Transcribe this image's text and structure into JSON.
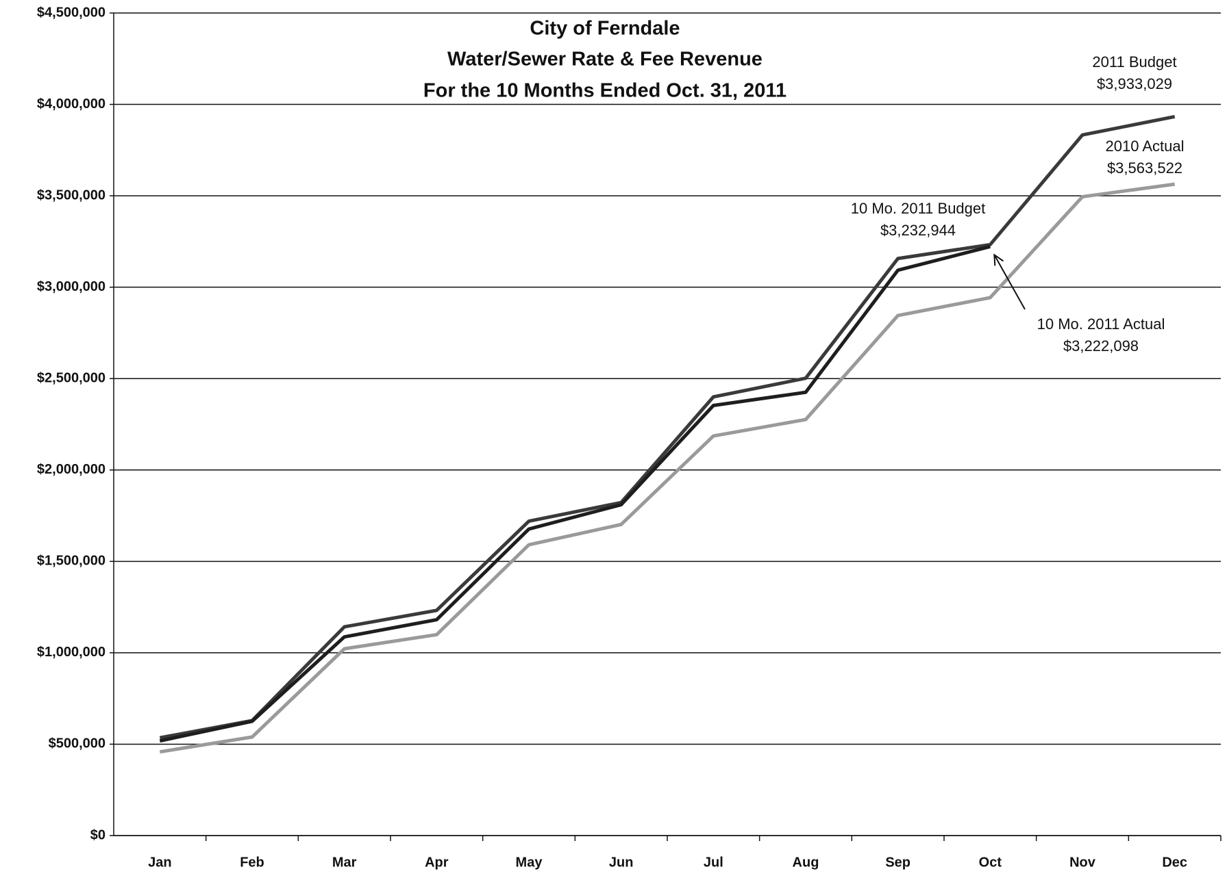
{
  "chart_data": {
    "type": "line",
    "title": [
      "City of Ferndale",
      "Water/Sewer Rate & Fee Revenue",
      "For the 10 Months Ended Oct. 31, 2011"
    ],
    "categories": [
      "Jan",
      "Feb",
      "Mar",
      "Apr",
      "May",
      "Jun",
      "Jul",
      "Aug",
      "Sep",
      "Oct",
      "Nov",
      "Dec"
    ],
    "series": [
      {
        "color": "#9a9a9a",
        "values": [
          458000,
          539000,
          1022000,
          1099000,
          1591000,
          1702000,
          2186000,
          2276000,
          2845000,
          2943000,
          3495000,
          3563522
        ]
      },
      {
        "color": "#3a3a3a",
        "values": [
          535000,
          629000,
          1142000,
          1232000,
          1720000,
          1822000,
          2400000,
          2502000,
          3157000,
          3232944,
          3833000,
          3933029
        ]
      },
      {
        "color": "#1e1e1e",
        "values": [
          518000,
          625000,
          1087000,
          1181000,
          1677000,
          1810000,
          2353000,
          2425000,
          3093000,
          3222098,
          null,
          null
        ]
      }
    ],
    "annotations": [
      {
        "text": "2011 Budget",
        "label": "$3,933,029"
      },
      {
        "text": "2010 Actual",
        "label": "$3,563,522"
      },
      {
        "text": "10 Mo. 2011 Budget",
        "label": "$3,232,944"
      },
      {
        "text": "10 Mo. 2011 Actual",
        "label": "$3,222,098"
      }
    ],
    "ylim": [
      0,
      4500000
    ],
    "yticks": [
      {
        "value": 0,
        "label": "$0"
      },
      {
        "value": 500000,
        "label": "$500,000"
      },
      {
        "value": 1000000,
        "label": "$1,000,000"
      },
      {
        "value": 1500000,
        "label": "$1,500,000"
      },
      {
        "value": 2000000,
        "label": "$2,000,000"
      },
      {
        "value": 2500000,
        "label": "$2,500,000"
      },
      {
        "value": 3000000,
        "label": "$3,000,000"
      },
      {
        "value": 3500000,
        "label": "$3,500,000"
      },
      {
        "value": 4000000,
        "label": "$4,000,000"
      },
      {
        "value": 4500000,
        "label": "$4,500,000"
      }
    ],
    "grid": true
  }
}
